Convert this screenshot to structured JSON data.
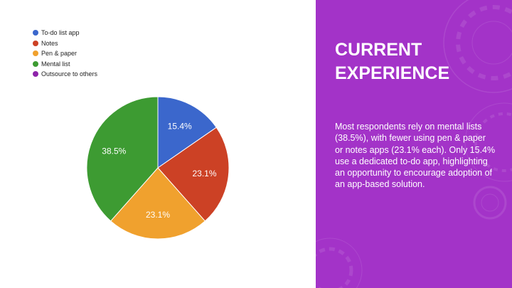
{
  "chart_data": {
    "type": "pie",
    "title": "",
    "legend_position": "top-left",
    "slices": [
      {
        "label": "To-do list app",
        "value": 15.4,
        "value_label": "15.4%",
        "color": "#3b67cc"
      },
      {
        "label": "Notes",
        "value": 23.1,
        "value_label": "23.1%",
        "color": "#cc4125"
      },
      {
        "label": "Pen & paper",
        "value": 23.1,
        "value_label": "23.1%",
        "color": "#f0a12e"
      },
      {
        "label": "Mental list",
        "value": 38.5,
        "value_label": "38.5%",
        "color": "#3d9b32"
      },
      {
        "label": "Outsource to others",
        "value": 0,
        "value_label": "",
        "color": "#8e24aa"
      }
    ]
  },
  "panel": {
    "title_lines": [
      "CURRENT",
      "EXPERIENCE"
    ],
    "body": "Most respondents rely on mental lists (38.5%), with fewer using pen & paper or notes apps (23.1% each). Only 15.4% use a dedicated to-do app, highlighting an opportunity to encourage adoption of an app-based solution.",
    "background_color": "#a333c8",
    "text_color": "#ffffff"
  }
}
